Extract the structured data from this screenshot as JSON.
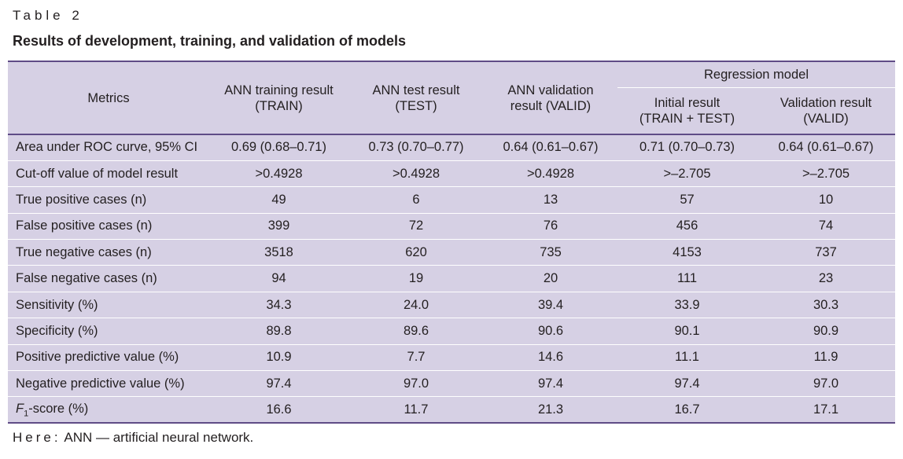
{
  "table_label": "Table 2",
  "table_title": "Results of development, training, and validation of models",
  "headers": {
    "metrics": "Metrics",
    "ann_train": [
      "ANN training result",
      "(TRAIN)"
    ],
    "ann_test": [
      "ANN test result",
      "(TEST)"
    ],
    "ann_valid": [
      "ANN validation",
      "result (VALID)"
    ],
    "regression_group": "Regression model",
    "reg_initial": [
      "Initial result",
      "(TRAIN + TEST)"
    ],
    "reg_valid": [
      "Validation result",
      "(VALID)"
    ]
  },
  "rows": [
    {
      "metric": "Area under ROC curve, 95% CI",
      "values": [
        "0.69 (0.68–0.71)",
        "0.73 (0.70–0.77)",
        "0.64 (0.61–0.67)",
        "0.71 (0.70–0.73)",
        "0.64 (0.61–0.67)"
      ]
    },
    {
      "metric": "Cut-off value of model result",
      "values": [
        ">0.4928",
        ">0.4928",
        ">0.4928",
        ">–2.705",
        ">–2.705"
      ]
    },
    {
      "metric": "True positive cases (n)",
      "values": [
        "49",
        "6",
        "13",
        "57",
        "10"
      ]
    },
    {
      "metric": "False positive cases (n)",
      "values": [
        "399",
        "72",
        "76",
        "456",
        "74"
      ]
    },
    {
      "metric": "True negative cases (n)",
      "values": [
        "3518",
        "620",
        "735",
        "4153",
        "737"
      ]
    },
    {
      "metric": "False negative cases (n)",
      "values": [
        "94",
        "19",
        "20",
        "111",
        "23"
      ]
    },
    {
      "metric": "Sensitivity (%)",
      "values": [
        "34.3",
        "24.0",
        "39.4",
        "33.9",
        "30.3"
      ]
    },
    {
      "metric": "Specificity (%)",
      "values": [
        "89.8",
        "89.6",
        "90.6",
        "90.1",
        "90.9"
      ]
    },
    {
      "metric": "Positive predictive value (%)",
      "values": [
        "10.9",
        "7.7",
        "14.6",
        "11.1",
        "11.9"
      ]
    },
    {
      "metric": "Negative predictive value (%)",
      "values": [
        "97.4",
        "97.0",
        "97.4",
        "97.4",
        "97.0"
      ]
    },
    {
      "metric_parts": {
        "letter": "F",
        "subscript": "1",
        "rest": "-score (%)"
      },
      "values": [
        "16.6",
        "11.7",
        "21.3",
        "16.7",
        "17.1"
      ]
    }
  ],
  "footnote": {
    "here": "Here:",
    "text": " ANN — artificial neural network."
  },
  "colors": {
    "table_background": "#d6d0e4",
    "rule_color": "#5f4c86",
    "row_separator": "#ffffff"
  }
}
